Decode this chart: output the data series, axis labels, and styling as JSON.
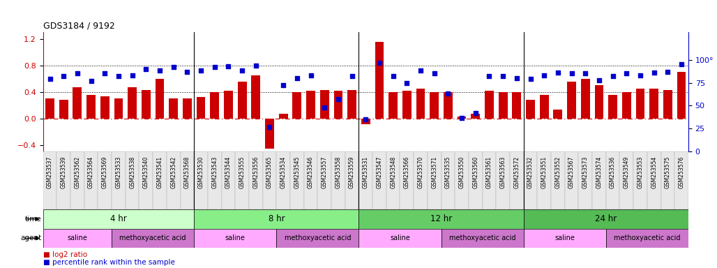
{
  "title": "GDS3184 / 9192",
  "sample_ids": [
    "GSM253537",
    "GSM253539",
    "GSM253562",
    "GSM253564",
    "GSM253569",
    "GSM253533",
    "GSM253538",
    "GSM253540",
    "GSM253541",
    "GSM253542",
    "GSM253568",
    "GSM253530",
    "GSM253543",
    "GSM253544",
    "GSM253555",
    "GSM253556",
    "GSM253565",
    "GSM253534",
    "GSM253545",
    "GSM253546",
    "GSM253557",
    "GSM253558",
    "GSM253559",
    "GSM253531",
    "GSM253547",
    "GSM253548",
    "GSM253566",
    "GSM253570",
    "GSM253571",
    "GSM253535",
    "GSM253550",
    "GSM253560",
    "GSM253561",
    "GSM253563",
    "GSM253572",
    "GSM253532",
    "GSM253551",
    "GSM253552",
    "GSM253567",
    "GSM253573",
    "GSM253574",
    "GSM253536",
    "GSM253549",
    "GSM253553",
    "GSM253554",
    "GSM253575",
    "GSM253576"
  ],
  "log2_ratio": [
    0.3,
    0.28,
    0.47,
    0.35,
    0.33,
    0.3,
    0.47,
    0.43,
    0.6,
    0.3,
    0.3,
    0.32,
    0.4,
    0.42,
    0.55,
    0.65,
    -0.45,
    0.07,
    0.4,
    0.42,
    0.43,
    0.42,
    0.43,
    -0.09,
    1.15,
    0.4,
    0.42,
    0.45,
    0.4,
    0.4,
    0.03,
    0.07,
    0.42,
    0.4,
    0.4,
    0.28,
    0.36,
    0.13,
    0.55,
    0.6,
    0.5,
    0.35,
    0.4,
    0.45,
    0.45,
    0.43,
    0.7
  ],
  "percentile": [
    79,
    82,
    85,
    77,
    85,
    82,
    83,
    90,
    88,
    92,
    87,
    88,
    92,
    93,
    88,
    94,
    27,
    72,
    80,
    83,
    48,
    57,
    82,
    35,
    97,
    82,
    75,
    88,
    85,
    63,
    37,
    42,
    82,
    82,
    80,
    79,
    83,
    86,
    85,
    85,
    78,
    82,
    85,
    83,
    86,
    87,
    95
  ],
  "bar_color": "#cc0000",
  "dot_color": "#0000cc",
  "ylim_left": [
    -0.5,
    1.3
  ],
  "ylim_right": [
    0,
    130
  ],
  "yticks_left": [
    -0.4,
    0.0,
    0.4,
    0.8,
    1.2
  ],
  "yticks_right": [
    0,
    25,
    50,
    75,
    100
  ],
  "hlines": [
    0.4,
    0.8
  ],
  "time_groups": [
    {
      "label": "4 hr",
      "start": 0,
      "end": 11,
      "color": "#ccffcc"
    },
    {
      "label": "8 hr",
      "start": 11,
      "end": 23,
      "color": "#88ee88"
    },
    {
      "label": "12 hr",
      "start": 23,
      "end": 35,
      "color": "#66cc66"
    },
    {
      "label": "24 hr",
      "start": 35,
      "end": 47,
      "color": "#55bb55"
    }
  ],
  "agent_groups": [
    {
      "label": "saline",
      "start": 0,
      "end": 5,
      "color": "#ffaaff"
    },
    {
      "label": "methoxyacetic acid",
      "start": 5,
      "end": 11,
      "color": "#cc77cc"
    },
    {
      "label": "saline",
      "start": 11,
      "end": 17,
      "color": "#ffaaff"
    },
    {
      "label": "methoxyacetic acid",
      "start": 17,
      "end": 23,
      "color": "#cc77cc"
    },
    {
      "label": "saline",
      "start": 23,
      "end": 29,
      "color": "#ffaaff"
    },
    {
      "label": "methoxyacetic acid",
      "start": 29,
      "end": 35,
      "color": "#cc77cc"
    },
    {
      "label": "saline",
      "start": 35,
      "end": 41,
      "color": "#ffaaff"
    },
    {
      "label": "methoxyacetic acid",
      "start": 41,
      "end": 47,
      "color": "#cc77cc"
    }
  ],
  "background_color": "#ffffff",
  "tick_label_fontsize": 5.5,
  "title_fontsize": 9,
  "legend_label1": "log2 ratio",
  "legend_label2": "percentile rank within the sample"
}
